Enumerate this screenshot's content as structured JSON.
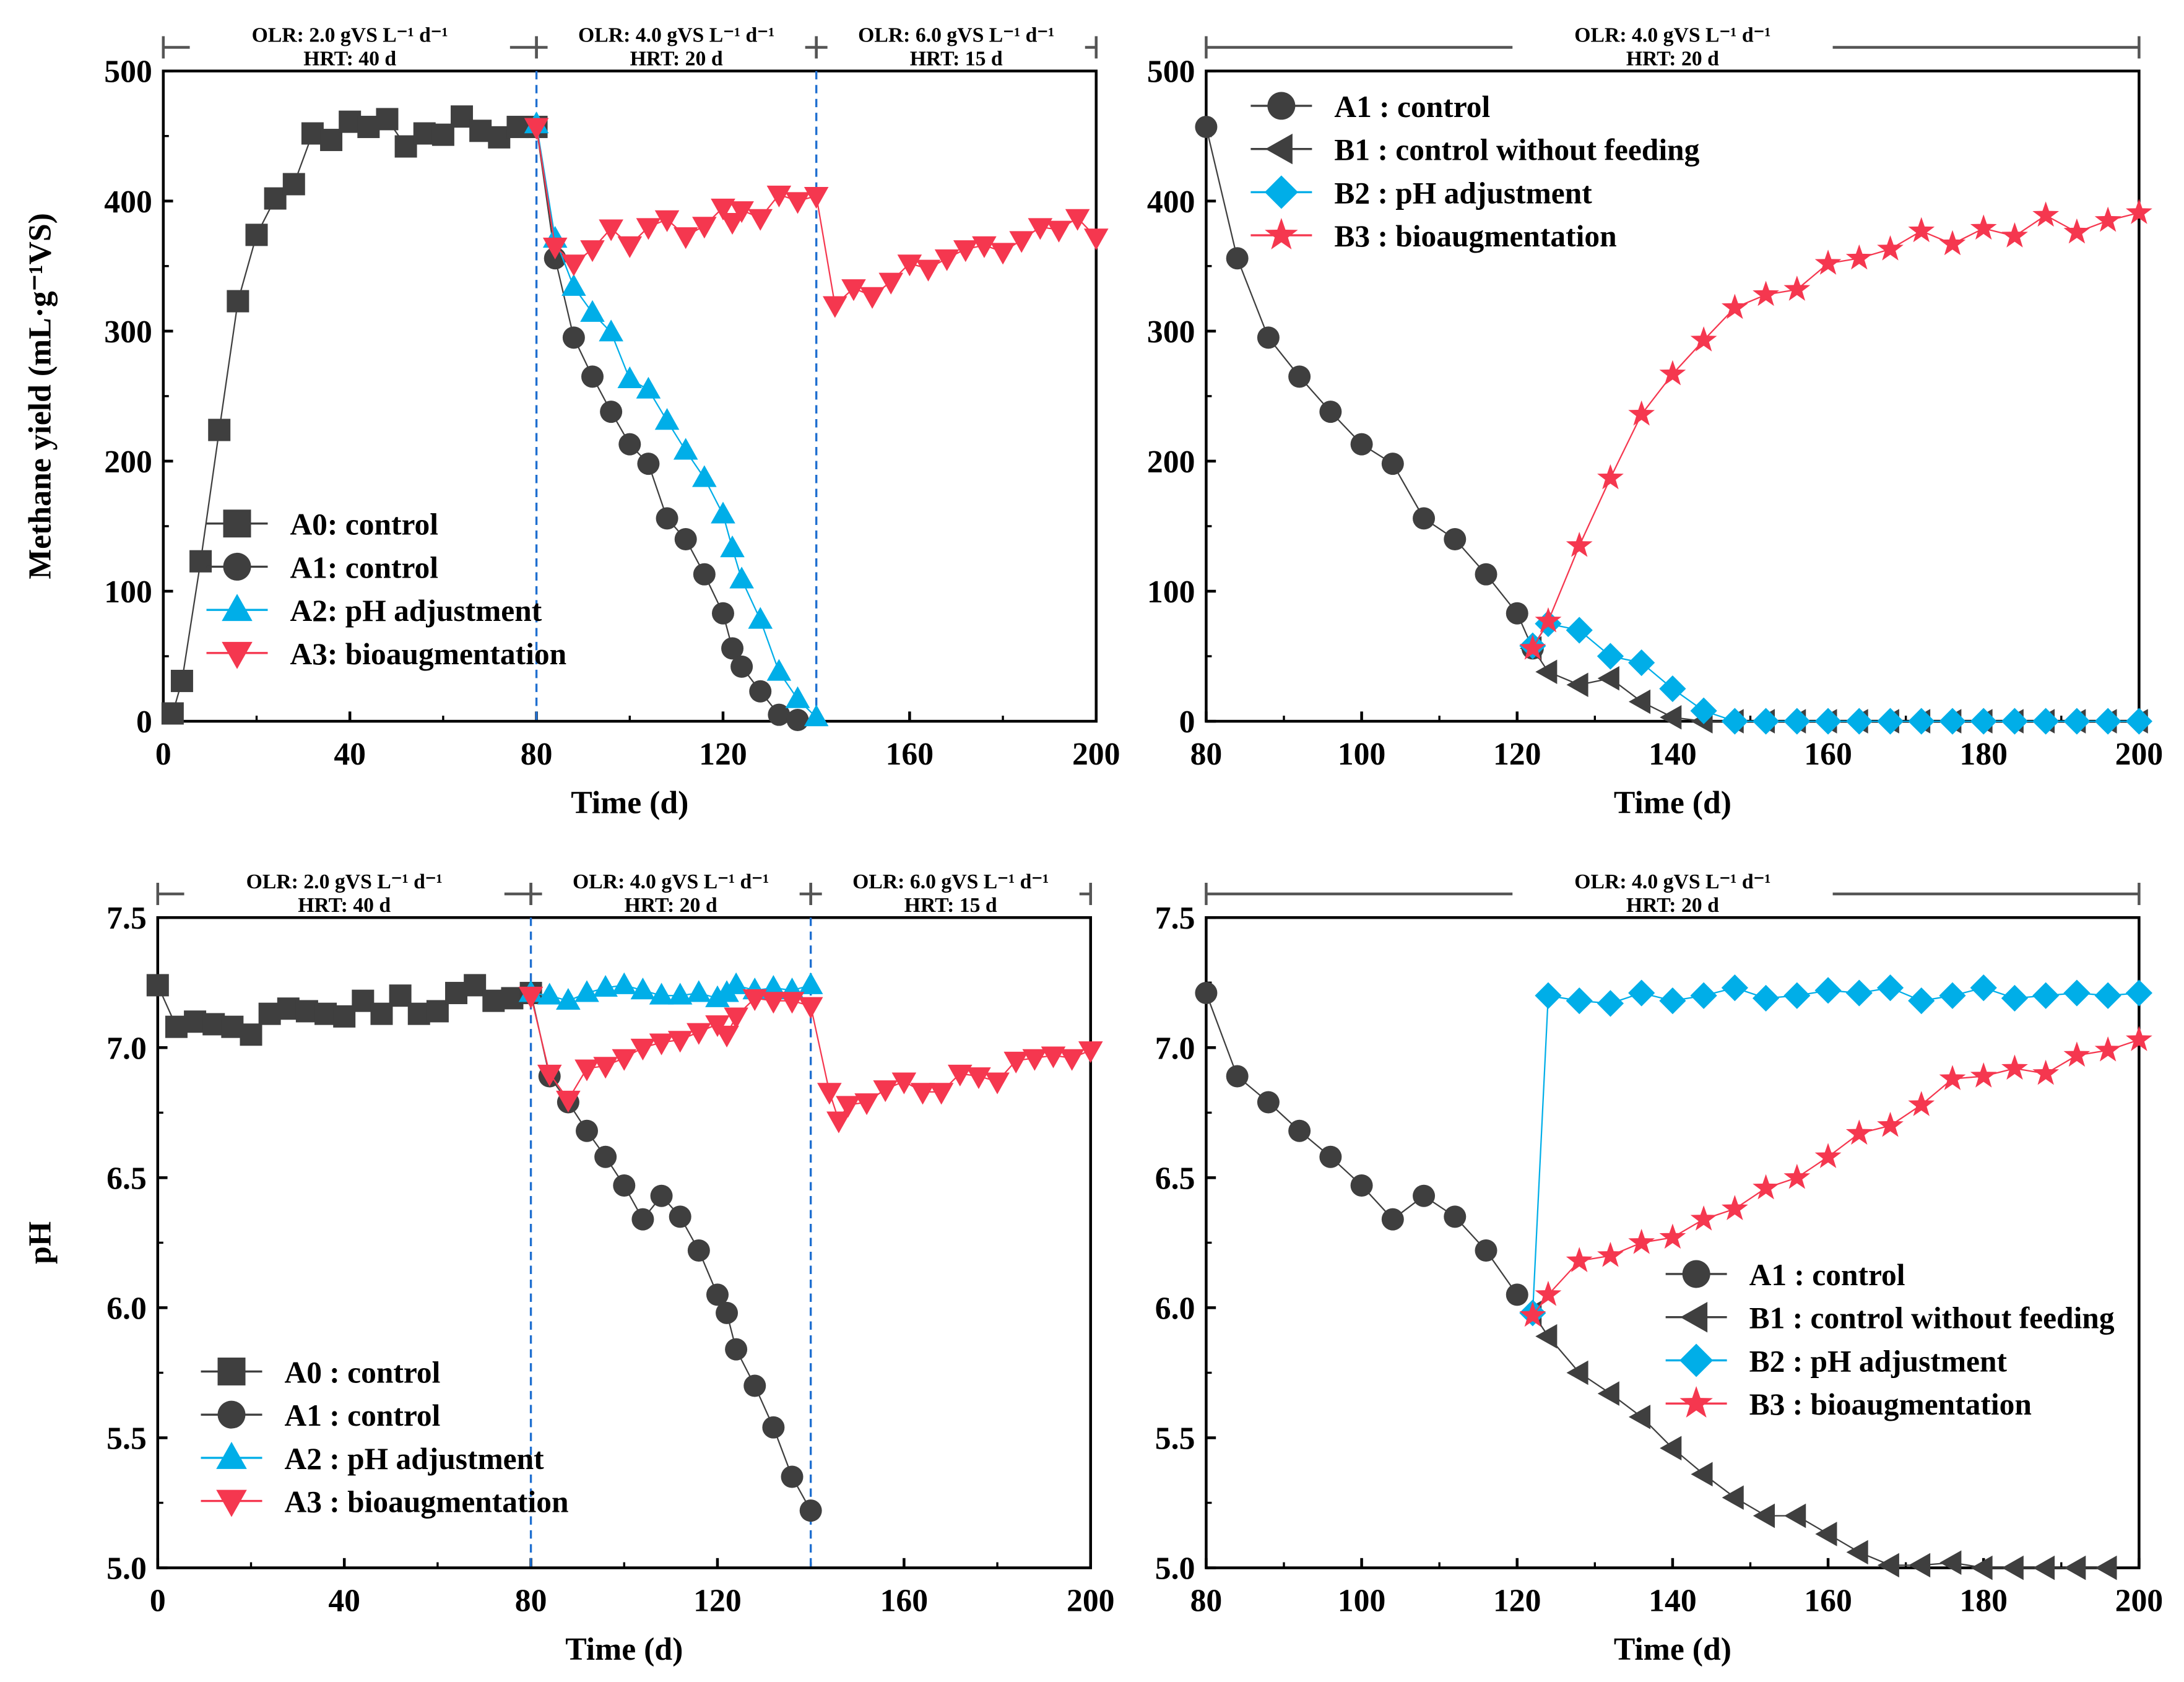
{
  "colors": {
    "A0": "#3f3f3f",
    "A1": "#3f3f3f",
    "B1": "#3f3f3f",
    "A2": "#00aee8",
    "B2": "#00aee8",
    "A3": "#f5374f",
    "B3": "#f5374f",
    "divider": "#1f6fd0"
  },
  "chart_data": [
    {
      "type": "line",
      "id": "methane-full",
      "ylabel": "Methane yield (mL·g⁻¹VS)",
      "xlabel": "Time (d)",
      "xlim": [
        0,
        200
      ],
      "ylim": [
        0,
        500
      ],
      "xticks": [
        0,
        40,
        80,
        120,
        160,
        200
      ],
      "yticks": [
        0,
        100,
        200,
        300,
        400,
        500
      ],
      "dividers": [
        80,
        140
      ],
      "phases": [
        {
          "x": [
            0,
            80
          ],
          "olr": "OLR:  2.0 gVS L⁻¹ d⁻¹",
          "hrt": "HRT: 40 d"
        },
        {
          "x": [
            80,
            140
          ],
          "olr": "OLR:  4.0 gVS L⁻¹ d⁻¹",
          "hrt": "HRT: 20 d"
        },
        {
          "x": [
            140,
            200
          ],
          "olr": "OLR:  6.0 gVS L⁻¹ d⁻¹",
          "hrt": "HRT: 15 d"
        }
      ],
      "legend_position": "bottom-left",
      "series": [
        {
          "key": "A0",
          "name": "A0: control",
          "marker": "square",
          "x": [
            2,
            4,
            8,
            12,
            16,
            20,
            24,
            28,
            32,
            36,
            40,
            44,
            48,
            52,
            56,
            60,
            64,
            68,
            72,
            76,
            80
          ],
          "y": [
            6,
            31,
            123,
            224,
            323,
            374,
            402,
            413,
            452,
            447,
            461,
            457,
            463,
            442,
            452,
            451,
            465,
            454,
            449,
            457,
            457
          ]
        },
        {
          "key": "A1",
          "name": "A1: control",
          "marker": "circle",
          "x": [
            80,
            84,
            88,
            92,
            96,
            100,
            104,
            108,
            112,
            116,
            120,
            122,
            124,
            128,
            132,
            136
          ],
          "y": [
            457,
            356,
            295,
            265,
            238,
            213,
            198,
            156,
            140,
            113,
            83,
            56,
            42,
            23,
            5,
            1
          ]
        },
        {
          "key": "A2",
          "name": "A2: pH adjustment",
          "marker": "triangle-up",
          "x": [
            80,
            84,
            88,
            92,
            96,
            100,
            104,
            108,
            112,
            116,
            120,
            122,
            124,
            128,
            132,
            136,
            140
          ],
          "y": [
            459,
            371,
            334,
            314,
            299,
            263,
            255,
            231,
            208,
            187,
            159,
            133,
            109,
            78,
            38,
            17,
            3
          ]
        },
        {
          "key": "A3",
          "name": "A3: bioaugmentation",
          "marker": "triangle-down",
          "x": [
            80,
            84,
            88,
            92,
            96,
            100,
            104,
            108,
            112,
            116,
            120,
            122,
            124,
            128,
            132,
            136,
            140,
            144,
            148,
            152,
            156,
            160,
            164,
            168,
            172,
            176,
            180,
            184,
            188,
            192,
            196,
            200
          ],
          "y": [
            457,
            365,
            352,
            363,
            379,
            366,
            380,
            386,
            373,
            381,
            395,
            384,
            393,
            387,
            405,
            400,
            404,
            320,
            333,
            327,
            338,
            352,
            348,
            356,
            363,
            366,
            361,
            370,
            380,
            378,
            387,
            372
          ]
        }
      ]
    },
    {
      "type": "line",
      "id": "methane-zoom",
      "ylabel": "",
      "xlabel": "Time (d)",
      "xlim": [
        80,
        200
      ],
      "ylim": [
        0,
        500
      ],
      "xticks": [
        80,
        100,
        120,
        140,
        160,
        180,
        200
      ],
      "yticks": [
        0,
        100,
        200,
        300,
        400,
        500
      ],
      "dividers": [],
      "phases": [
        {
          "x": [
            80,
            200
          ],
          "olr": "OLR:  4.0 gVS L⁻¹ d⁻¹",
          "hrt": "HRT: 20 d"
        }
      ],
      "legend_position": "top-left",
      "series": [
        {
          "key": "A1",
          "name": "A1 : control",
          "marker": "circle",
          "x": [
            80,
            84,
            88,
            92,
            96,
            100,
            104,
            108,
            112,
            116,
            120,
            122
          ],
          "y": [
            457,
            356,
            295,
            265,
            238,
            213,
            198,
            156,
            140,
            113,
            83,
            56
          ]
        },
        {
          "key": "B1",
          "name": "B1 : control without feeding",
          "marker": "triangle-left",
          "x": [
            122,
            124,
            128,
            132,
            136,
            140,
            144,
            148,
            152,
            156,
            160,
            164,
            168,
            172,
            176,
            180,
            184,
            188,
            192,
            196,
            200
          ],
          "y": [
            56,
            38,
            28,
            33,
            15,
            3,
            0,
            0,
            0,
            0,
            0,
            0,
            0,
            0,
            0,
            0,
            0,
            0,
            0,
            0,
            0
          ]
        },
        {
          "key": "B2",
          "name": "B2 : pH adjustment",
          "marker": "diamond",
          "x": [
            122,
            124,
            128,
            132,
            136,
            140,
            144,
            148,
            152,
            156,
            160,
            164,
            168,
            172,
            176,
            180,
            184,
            188,
            192,
            196,
            200
          ],
          "y": [
            58,
            75,
            70,
            50,
            45,
            25,
            8,
            0,
            0,
            0,
            0,
            0,
            0,
            0,
            0,
            0,
            0,
            0,
            0,
            0,
            0
          ]
        },
        {
          "key": "B3",
          "name": "B3 : bioaugmentation",
          "marker": "star",
          "x": [
            122,
            124,
            128,
            132,
            136,
            140,
            144,
            148,
            152,
            156,
            160,
            164,
            168,
            172,
            176,
            180,
            184,
            188,
            192,
            196,
            200
          ],
          "y": [
            56,
            77,
            135,
            187,
            236,
            267,
            293,
            318,
            328,
            332,
            352,
            356,
            363,
            377,
            367,
            379,
            373,
            389,
            376,
            385,
            391
          ]
        }
      ]
    },
    {
      "type": "line",
      "id": "ph-full",
      "ylabel": "pH",
      "xlabel": "Time (d)",
      "xlim": [
        0,
        200
      ],
      "ylim": [
        5.0,
        7.5
      ],
      "xticks": [
        0,
        40,
        80,
        120,
        160,
        200
      ],
      "yticks": [
        5.0,
        5.5,
        6.0,
        6.5,
        7.0,
        7.5
      ],
      "dividers": [
        80,
        140
      ],
      "phases": [
        {
          "x": [
            0,
            80
          ],
          "olr": "OLR:  2.0 gVS L⁻¹ d⁻¹",
          "hrt": "HRT: 40 d"
        },
        {
          "x": [
            80,
            140
          ],
          "olr": "OLR:  4.0 gVS L⁻¹ d⁻¹",
          "hrt": "HRT: 20 d"
        },
        {
          "x": [
            140,
            200
          ],
          "olr": "OLR:  6.0 gVS L⁻¹ d⁻¹",
          "hrt": "HRT: 15 d"
        }
      ],
      "legend_position": "bottom-left",
      "series": [
        {
          "key": "A0",
          "name": "A0 : control",
          "marker": "square",
          "x": [
            0,
            4,
            8,
            12,
            16,
            20,
            24,
            28,
            32,
            36,
            40,
            44,
            48,
            52,
            56,
            60,
            64,
            68,
            72,
            76,
            80
          ],
          "y": [
            7.24,
            7.08,
            7.1,
            7.09,
            7.08,
            7.05,
            7.13,
            7.15,
            7.14,
            7.13,
            7.12,
            7.18,
            7.13,
            7.2,
            7.13,
            7.14,
            7.21,
            7.24,
            7.18,
            7.19,
            7.21
          ]
        },
        {
          "key": "A1",
          "name": "A1 : control",
          "marker": "circle",
          "x": [
            80,
            84,
            88,
            92,
            96,
            100,
            104,
            108,
            112,
            116,
            120,
            122,
            124,
            128,
            132,
            136,
            140
          ],
          "y": [
            7.21,
            6.89,
            6.79,
            6.68,
            6.58,
            6.47,
            6.34,
            6.43,
            6.35,
            6.22,
            6.05,
            5.98,
            5.84,
            5.7,
            5.54,
            5.35,
            5.22
          ]
        },
        {
          "key": "A2",
          "name": "A2 : pH adjustment",
          "marker": "triangle-up",
          "x": [
            80,
            84,
            88,
            92,
            96,
            100,
            104,
            108,
            112,
            116,
            120,
            122,
            124,
            128,
            132,
            136,
            140
          ],
          "y": [
            7.21,
            7.2,
            7.18,
            7.21,
            7.23,
            7.24,
            7.22,
            7.2,
            7.2,
            7.21,
            7.19,
            7.21,
            7.24,
            7.22,
            7.23,
            7.22,
            7.24
          ]
        },
        {
          "key": "A3",
          "name": "A3 : bioaugmentation",
          "marker": "triangle-down",
          "x": [
            80,
            84,
            88,
            92,
            96,
            100,
            104,
            108,
            112,
            116,
            120,
            122,
            124,
            128,
            132,
            136,
            140,
            144,
            146,
            148,
            152,
            156,
            160,
            164,
            168,
            172,
            176,
            180,
            184,
            188,
            192,
            196,
            200
          ],
          "y": [
            7.2,
            6.9,
            6.8,
            6.92,
            6.93,
            6.96,
            7.0,
            7.02,
            7.03,
            7.06,
            7.09,
            7.05,
            7.12,
            7.19,
            7.18,
            7.18,
            7.16,
            6.83,
            6.72,
            6.78,
            6.79,
            6.84,
            6.87,
            6.83,
            6.83,
            6.9,
            6.89,
            6.87,
            6.95,
            6.96,
            6.97,
            6.96,
            6.99
          ]
        }
      ]
    },
    {
      "type": "line",
      "id": "ph-zoom",
      "ylabel": "",
      "xlabel": "Time (d)",
      "xlim": [
        80,
        200
      ],
      "ylim": [
        5.0,
        7.5
      ],
      "xticks": [
        80,
        100,
        120,
        140,
        160,
        180,
        200
      ],
      "yticks": [
        5.0,
        5.5,
        6.0,
        6.5,
        7.0,
        7.5
      ],
      "dividers": [],
      "phases": [
        {
          "x": [
            80,
            200
          ],
          "olr": "OLR:  4.0 gVS L⁻¹ d⁻¹",
          "hrt": "HRT: 20 d"
        }
      ],
      "legend_position": "center-right",
      "series": [
        {
          "key": "A1",
          "name": "A1 : control",
          "marker": "circle",
          "x": [
            80,
            84,
            88,
            92,
            96,
            100,
            104,
            108,
            112,
            116,
            120
          ],
          "y": [
            7.21,
            6.89,
            6.79,
            6.68,
            6.58,
            6.47,
            6.34,
            6.43,
            6.35,
            6.22,
            6.05
          ]
        },
        {
          "key": "B1",
          "name": "B1 : control without feeding",
          "marker": "triangle-left",
          "x": [
            122,
            124,
            128,
            132,
            136,
            140,
            144,
            148,
            152,
            156,
            160,
            164,
            168,
            172,
            176,
            180,
            184,
            188,
            192,
            196
          ],
          "y": [
            5.98,
            5.89,
            5.75,
            5.67,
            5.58,
            5.46,
            5.36,
            5.27,
            5.2,
            5.2,
            5.13,
            5.06,
            5.01,
            5.01,
            5.02,
            4.99,
            4.98,
            4.99,
            4.98,
            4.98
          ]
        },
        {
          "key": "B2",
          "name": "B2 : pH adjustment",
          "marker": "diamond",
          "x": [
            122,
            124,
            128,
            132,
            136,
            140,
            144,
            148,
            152,
            156,
            160,
            164,
            168,
            172,
            176,
            180,
            184,
            188,
            192,
            196,
            200
          ],
          "y": [
            5.98,
            7.2,
            7.18,
            7.17,
            7.21,
            7.18,
            7.2,
            7.23,
            7.19,
            7.2,
            7.22,
            7.21,
            7.23,
            7.18,
            7.2,
            7.23,
            7.19,
            7.2,
            7.21,
            7.2,
            7.21
          ]
        },
        {
          "key": "B3",
          "name": "B3 : bioaugmentation",
          "marker": "star",
          "x": [
            122,
            124,
            128,
            132,
            136,
            140,
            144,
            148,
            152,
            156,
            160,
            164,
            168,
            172,
            176,
            180,
            184,
            188,
            192,
            196,
            200
          ],
          "y": [
            5.97,
            6.05,
            6.18,
            6.2,
            6.25,
            6.27,
            6.34,
            6.38,
            6.46,
            6.5,
            6.58,
            6.67,
            6.7,
            6.78,
            6.88,
            6.89,
            6.92,
            6.9,
            6.97,
            6.99,
            7.03
          ]
        }
      ]
    }
  ]
}
